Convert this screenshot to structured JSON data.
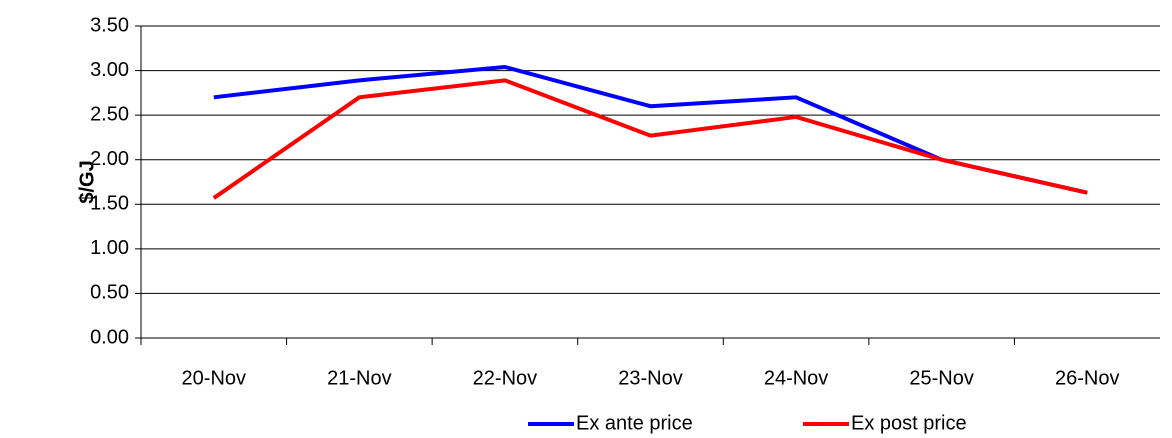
{
  "chart_data": {
    "type": "line",
    "y_label": "$/GJ",
    "categories": [
      "20-Nov",
      "21-Nov",
      "22-Nov",
      "23-Nov",
      "24-Nov",
      "25-Nov",
      "26-Nov"
    ],
    "series": [
      {
        "name": "Ex ante price",
        "color": "#0000ff",
        "values": [
          2.7,
          2.89,
          3.04,
          2.6,
          2.7,
          2.0,
          1.63
        ]
      },
      {
        "name": "Ex post price",
        "color": "#ff0000",
        "values": [
          1.57,
          2.7,
          2.89,
          2.27,
          2.48,
          2.0,
          1.63
        ]
      }
    ],
    "ylim": [
      0,
      3.5
    ],
    "yticks": [
      {
        "value": 0,
        "label": "0.00"
      },
      {
        "value": 0.5,
        "label": "0.50"
      },
      {
        "value": 1,
        "label": "1.00"
      },
      {
        "value": 1.5,
        "label": "1.50"
      },
      {
        "value": 2,
        "label": "2.00"
      },
      {
        "value": 2.5,
        "label": "2.50"
      },
      {
        "value": 3,
        "label": "3.00"
      },
      {
        "value": 3.5,
        "label": "3.50"
      }
    ],
    "grid": true,
    "legend": "bottom"
  }
}
